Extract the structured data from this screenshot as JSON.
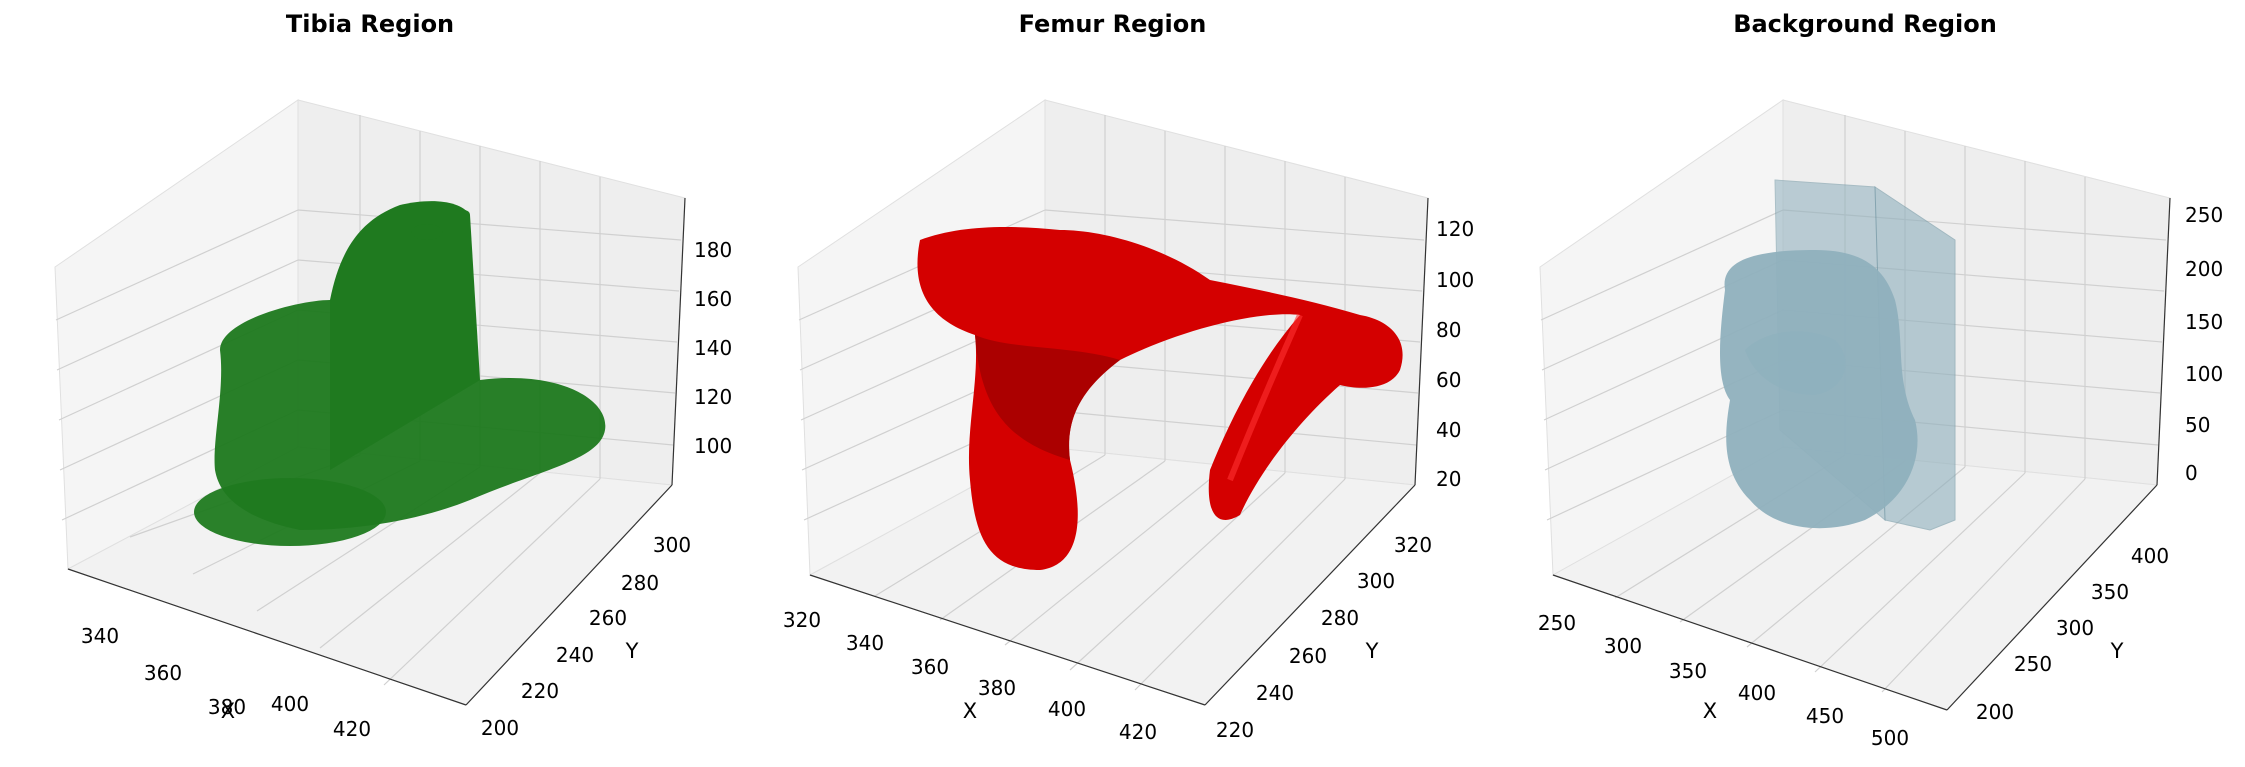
{
  "chart_data": [
    {
      "type": "3d-surface",
      "title": "Tibia Region",
      "xlabel": "X",
      "ylabel": "Y",
      "zlabel": "",
      "x_ticks": [
        "340",
        "360",
        "380",
        "400",
        "420"
      ],
      "y_ticks": [
        "200",
        "220",
        "240",
        "260",
        "280",
        "300"
      ],
      "z_ticks": [
        "100",
        "120",
        "140",
        "160",
        "180"
      ],
      "xlim": [
        330,
        435
      ],
      "ylim": [
        195,
        310
      ],
      "zlim": [
        85,
        195
      ],
      "color": "#1f7a1f",
      "grid": true
    },
    {
      "type": "3d-surface",
      "title": "Femur Region",
      "xlabel": "X",
      "ylabel": "Y",
      "zlabel": "",
      "x_ticks": [
        "320",
        "340",
        "360",
        "380",
        "400",
        "420"
      ],
      "y_ticks": [
        "220",
        "240",
        "260",
        "280",
        "300",
        "320"
      ],
      "z_ticks": [
        "20",
        "40",
        "60",
        "80",
        "100",
        "120"
      ],
      "xlim": [
        318,
        430
      ],
      "ylim": [
        218,
        330
      ],
      "zlim": [
        12,
        128
      ],
      "color": "#d40000",
      "grid": true
    },
    {
      "type": "3d-surface",
      "title": "Background Region",
      "xlabel": "X",
      "ylabel": "Y",
      "zlabel": "",
      "x_ticks": [
        "250",
        "300",
        "350",
        "400",
        "450",
        "500"
      ],
      "y_ticks": [
        "200",
        "250",
        "300",
        "350",
        "400"
      ],
      "z_ticks": [
        "0",
        "50",
        "100",
        "150",
        "200",
        "250"
      ],
      "xlim": [
        240,
        520
      ],
      "ylim": [
        180,
        420
      ],
      "zlim": [
        -20,
        260
      ],
      "color": "#8fb0bd",
      "grid": true
    }
  ]
}
